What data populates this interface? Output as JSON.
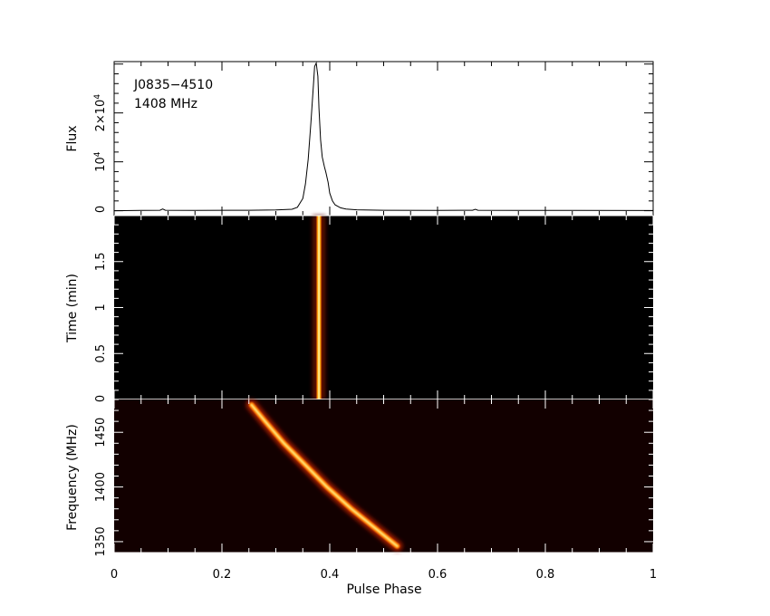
{
  "chart_data": [
    {
      "type": "line",
      "panel": "profile",
      "annotations": [
        "J0835−4510",
        "1408 MHz"
      ],
      "ylabel": "Flux",
      "yticks": [
        {
          "value": 0,
          "label": "0"
        },
        {
          "value": 10000,
          "label": "10",
          "sup": "4"
        },
        {
          "value": 20000,
          "label": "2×10",
          "sup": "4"
        }
      ],
      "ylim": [
        -1000,
        30500
      ],
      "xlim": [
        0,
        1
      ],
      "series": [
        {
          "x": [
            0,
            0.05,
            0.085,
            0.09,
            0.095,
            0.15,
            0.25,
            0.3,
            0.33,
            0.34,
            0.35,
            0.355,
            0.36,
            0.365,
            0.37,
            0.372,
            0.375,
            0.378,
            0.38,
            0.383,
            0.386,
            0.39,
            0.393,
            0.397,
            0.4,
            0.405,
            0.41,
            0.42,
            0.43,
            0.45,
            0.5,
            0.6,
            0.665,
            0.67,
            0.675,
            0.75,
            0.85,
            1
          ],
          "y": [
            0,
            50,
            100,
            350,
            100,
            50,
            100,
            150,
            300,
            700,
            2500,
            5500,
            10500,
            18000,
            26000,
            29500,
            30200,
            27500,
            21000,
            14500,
            11000,
            9000,
            7800,
            5800,
            3600,
            2000,
            1200,
            600,
            350,
            180,
            100,
            80,
            100,
            300,
            100,
            60,
            50,
            30
          ]
        }
      ]
    },
    {
      "type": "heatmap",
      "panel": "time-phase",
      "ylabel": "Time (min)",
      "ylim": [
        0,
        2
      ],
      "yticks": [
        0,
        0.5,
        1,
        1.5
      ],
      "xlim": [
        0,
        1
      ],
      "pulse": {
        "phase": 0.38,
        "width": 0.012
      }
    },
    {
      "type": "heatmap",
      "panel": "frequency-phase",
      "ylabel": "Frequency (MHz)",
      "xlabel": "Pulse Phase",
      "xlim": [
        0,
        1
      ],
      "ylim": [
        1340,
        1480
      ],
      "yticks": [
        1350,
        1400,
        1450
      ],
      "xticks": [
        0,
        0.2,
        0.4,
        0.6,
        0.8,
        1
      ],
      "xticklabels": [
        "0",
        "0.2",
        "0.4",
        "0.6",
        "0.8",
        "1"
      ],
      "sweep": {
        "freq": [
          1346,
          1360,
          1380,
          1400,
          1420,
          1440,
          1460,
          1475
        ],
        "phase": [
          0.525,
          0.49,
          0.44,
          0.395,
          0.355,
          0.315,
          0.28,
          0.255
        ]
      }
    }
  ]
}
